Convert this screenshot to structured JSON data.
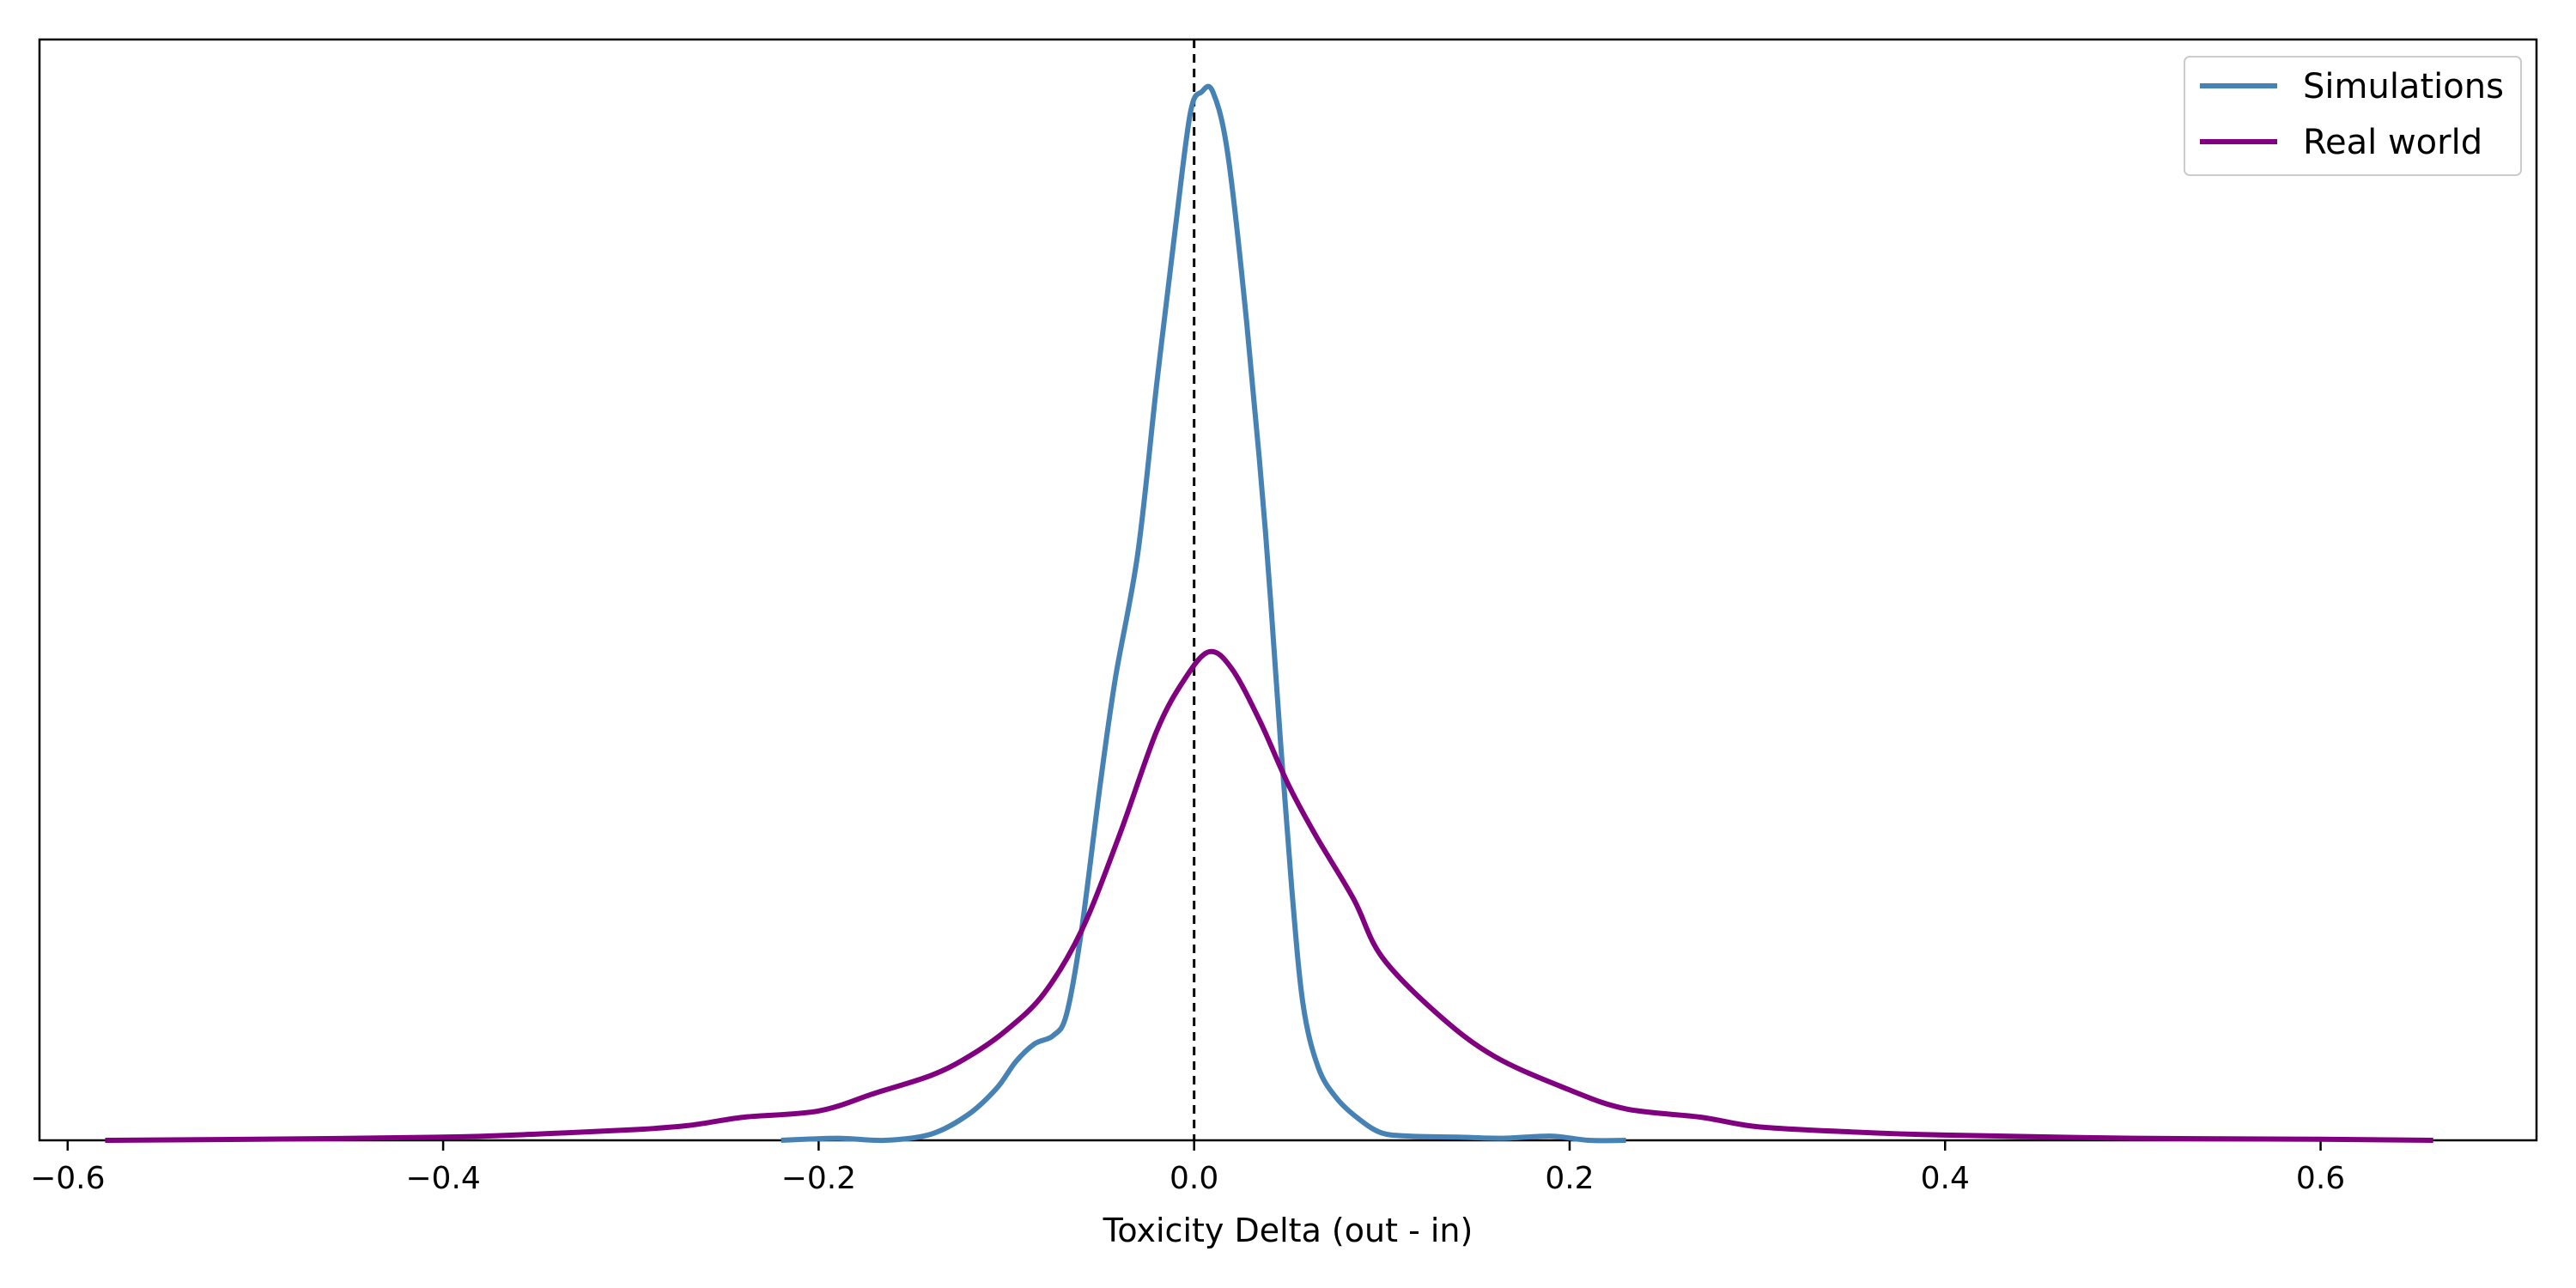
{
  "chart_data": {
    "type": "line",
    "title": "",
    "xlabel": "Toxicity Delta (out - in)",
    "ylabel": "",
    "xlim": [
      -0.615,
      0.715
    ],
    "ylim": [
      0,
      1.05
    ],
    "y_ticks_shown": false,
    "grid": false,
    "legend": "top-right",
    "x_ticks": [
      -0.6,
      -0.4,
      -0.2,
      0.0,
      0.2,
      0.4,
      0.6
    ],
    "x_tick_labels": [
      "−0.6",
      "−0.4",
      "−0.2",
      "0.0",
      "0.2",
      "0.4",
      "0.6"
    ],
    "reference_line": {
      "x": 0.0,
      "style": "dashed",
      "color": "#000000"
    },
    "series": [
      {
        "name": "Simulations",
        "color": "#4682b4",
        "points": [
          [
            -0.22,
            0.0
          ],
          [
            -0.19,
            0.002
          ],
          [
            -0.165,
            0.0
          ],
          [
            -0.14,
            0.006
          ],
          [
            -0.12,
            0.025
          ],
          [
            -0.105,
            0.05
          ],
          [
            -0.095,
            0.075
          ],
          [
            -0.085,
            0.092
          ],
          [
            -0.075,
            0.1
          ],
          [
            -0.068,
            0.12
          ],
          [
            -0.06,
            0.2
          ],
          [
            -0.05,
            0.34
          ],
          [
            -0.042,
            0.44
          ],
          [
            -0.03,
            0.56
          ],
          [
            -0.02,
            0.72
          ],
          [
            -0.01,
            0.87
          ],
          [
            -0.002,
            0.98
          ],
          [
            0.004,
            1.0
          ],
          [
            0.01,
            1.0
          ],
          [
            0.018,
            0.94
          ],
          [
            0.028,
            0.78
          ],
          [
            0.038,
            0.58
          ],
          [
            0.046,
            0.38
          ],
          [
            0.052,
            0.24
          ],
          [
            0.058,
            0.13
          ],
          [
            0.066,
            0.07
          ],
          [
            0.076,
            0.04
          ],
          [
            0.088,
            0.02
          ],
          [
            0.1,
            0.007
          ],
          [
            0.115,
            0.004
          ],
          [
            0.14,
            0.003
          ],
          [
            0.165,
            0.002
          ],
          [
            0.19,
            0.004
          ],
          [
            0.21,
            0.0
          ],
          [
            0.23,
            0.0
          ]
        ]
      },
      {
        "name": "Real world",
        "color": "#800080",
        "points": [
          [
            -0.58,
            0.0
          ],
          [
            -0.5,
            0.001
          ],
          [
            -0.4,
            0.003
          ],
          [
            -0.35,
            0.006
          ],
          [
            -0.3,
            0.01
          ],
          [
            -0.27,
            0.014
          ],
          [
            -0.24,
            0.022
          ],
          [
            -0.2,
            0.028
          ],
          [
            -0.17,
            0.045
          ],
          [
            -0.14,
            0.062
          ],
          [
            -0.12,
            0.08
          ],
          [
            -0.1,
            0.105
          ],
          [
            -0.08,
            0.14
          ],
          [
            -0.06,
            0.2
          ],
          [
            -0.04,
            0.29
          ],
          [
            -0.02,
            0.39
          ],
          [
            -0.005,
            0.44
          ],
          [
            0.008,
            0.466
          ],
          [
            0.02,
            0.45
          ],
          [
            0.035,
            0.4
          ],
          [
            0.05,
            0.34
          ],
          [
            0.065,
            0.29
          ],
          [
            0.085,
            0.23
          ],
          [
            0.1,
            0.175
          ],
          [
            0.13,
            0.12
          ],
          [
            0.16,
            0.08
          ],
          [
            0.2,
            0.048
          ],
          [
            0.23,
            0.03
          ],
          [
            0.27,
            0.022
          ],
          [
            0.3,
            0.013
          ],
          [
            0.35,
            0.008
          ],
          [
            0.4,
            0.005
          ],
          [
            0.5,
            0.002
          ],
          [
            0.6,
            0.001
          ],
          [
            0.66,
            0.0
          ]
        ]
      }
    ]
  }
}
